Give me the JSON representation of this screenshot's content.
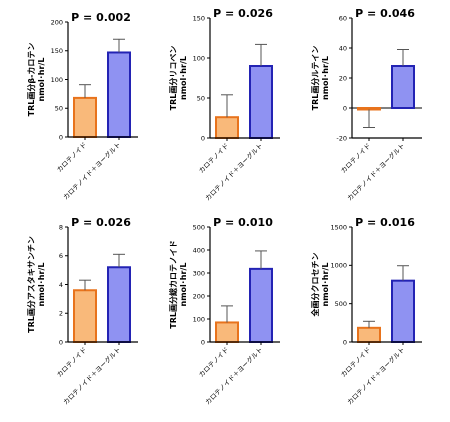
{
  "colors": {
    "bar1_fill": "#f9b97a",
    "bar1_stroke": "#e8731c",
    "bar2_fill": "#8f92f2",
    "bar2_stroke": "#2323b4",
    "axis": "#000000"
  },
  "chart_data": [
    {
      "type": "bar",
      "p_value": "P = 0.002",
      "ylabel": [
        "TRL画分β-カロテン",
        "nmol･hr/L"
      ],
      "categories": [
        "カロテノイド",
        "カロテノイド＋ヨーグルト"
      ],
      "values": [
        68,
        147
      ],
      "errors": [
        23,
        23
      ],
      "ylim": [
        0,
        200
      ],
      "yticks": [
        0,
        50,
        100,
        150,
        200
      ]
    },
    {
      "type": "bar",
      "p_value": "P = 0.026",
      "ylabel": [
        "TRL画分リコペン",
        "nmol･hr/L"
      ],
      "categories": [
        "カロテノイド",
        "カロテノイド＋ヨーグルト"
      ],
      "values": [
        26,
        90
      ],
      "errors": [
        28,
        27
      ],
      "ylim": [
        0,
        150
      ],
      "yticks": [
        0,
        50,
        100,
        150
      ]
    },
    {
      "type": "bar",
      "p_value": "P = 0.046",
      "ylabel": [
        "TRL画分ルテイン",
        "nmol･hr/L"
      ],
      "categories": [
        "カロテノイド",
        "カロテノイド＋ヨーグルト"
      ],
      "values": [
        -1,
        28
      ],
      "errors": [
        12,
        11
      ],
      "ylim": [
        -20,
        60
      ],
      "yticks": [
        -20,
        0,
        20,
        40,
        60
      ]
    },
    {
      "type": "bar",
      "p_value": "P = 0.026",
      "ylabel": [
        "TRL画分アスタキサンチン",
        "nmol･hr/L"
      ],
      "categories": [
        "カロテノイド",
        "カロテノイド＋ヨーグルト"
      ],
      "values": [
        3.6,
        5.2
      ],
      "errors": [
        0.7,
        0.9
      ],
      "ylim": [
        0,
        8
      ],
      "yticks": [
        0,
        2,
        4,
        6,
        8
      ]
    },
    {
      "type": "bar",
      "p_value": "P = 0.010",
      "ylabel": [
        "TRL画分総カロテノイド",
        "nmol･hr/L"
      ],
      "categories": [
        "カロテノイド",
        "カロテノイド＋ヨーグルト"
      ],
      "values": [
        85,
        318
      ],
      "errors": [
        72,
        78
      ],
      "ylim": [
        0,
        500
      ],
      "yticks": [
        0,
        100,
        200,
        300,
        400,
        500
      ]
    },
    {
      "type": "bar",
      "p_value": "P = 0.016",
      "ylabel": [
        "全画分クロセチン",
        "nmol･hr/L"
      ],
      "categories": [
        "カロテノイド",
        "カロテノイド＋ヨーグルト"
      ],
      "values": [
        185,
        800
      ],
      "errors": [
        85,
        195
      ],
      "ylim": [
        0,
        1500
      ],
      "yticks": [
        0,
        500,
        1000,
        1500
      ]
    }
  ]
}
